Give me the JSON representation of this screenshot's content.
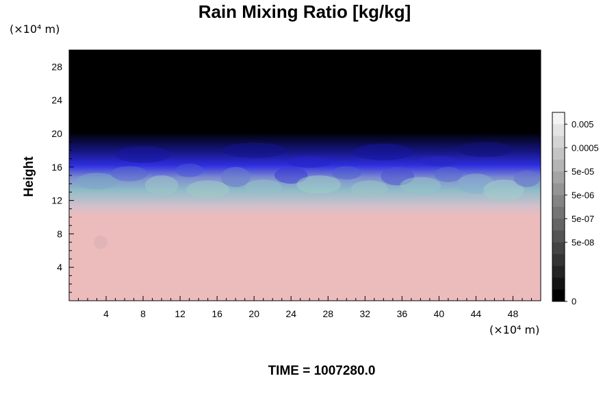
{
  "chart_data": {
    "type": "heatmap",
    "title": "Rain Mixing Ratio [kg/kg]",
    "xlabel": "",
    "ylabel": "Height",
    "x_unit": "(×10⁴ m)",
    "y_unit": "(×10⁴ m)",
    "xlim": [
      0,
      51
    ],
    "ylim": [
      0,
      30
    ],
    "x_ticks": [
      "4",
      "8",
      "12",
      "16",
      "20",
      "24",
      "28",
      "32",
      "36",
      "40",
      "44",
      "48"
    ],
    "y_ticks": [
      "4",
      "8",
      "12",
      "16",
      "20",
      "24",
      "28"
    ],
    "layers": [
      {
        "height_top": 11,
        "color": "#ecbcbc"
      },
      {
        "height_top": 14,
        "color": "#8fbcc8"
      },
      {
        "height_top": 16,
        "color": "#3a3ad8"
      },
      {
        "height_top": 19.5,
        "color": "#0a0a4a"
      },
      {
        "height_top": 30,
        "color": "#000000"
      }
    ],
    "colorbar": {
      "labels": [
        "0.005",
        "0.0005",
        "5e-05",
        "5e-06",
        "5e-07",
        "5e-08",
        "0"
      ],
      "colors": [
        "#f4f4f4",
        "#e4e4e4",
        "#d4d4d4",
        "#c4c4c4",
        "#b4b4b4",
        "#a4a4a4",
        "#949494",
        "#848484",
        "#747474",
        "#646464",
        "#545454",
        "#444444",
        "#343434",
        "#242424",
        "#141414",
        "#000000"
      ]
    },
    "time_label": "TIME = 1007280.0"
  }
}
